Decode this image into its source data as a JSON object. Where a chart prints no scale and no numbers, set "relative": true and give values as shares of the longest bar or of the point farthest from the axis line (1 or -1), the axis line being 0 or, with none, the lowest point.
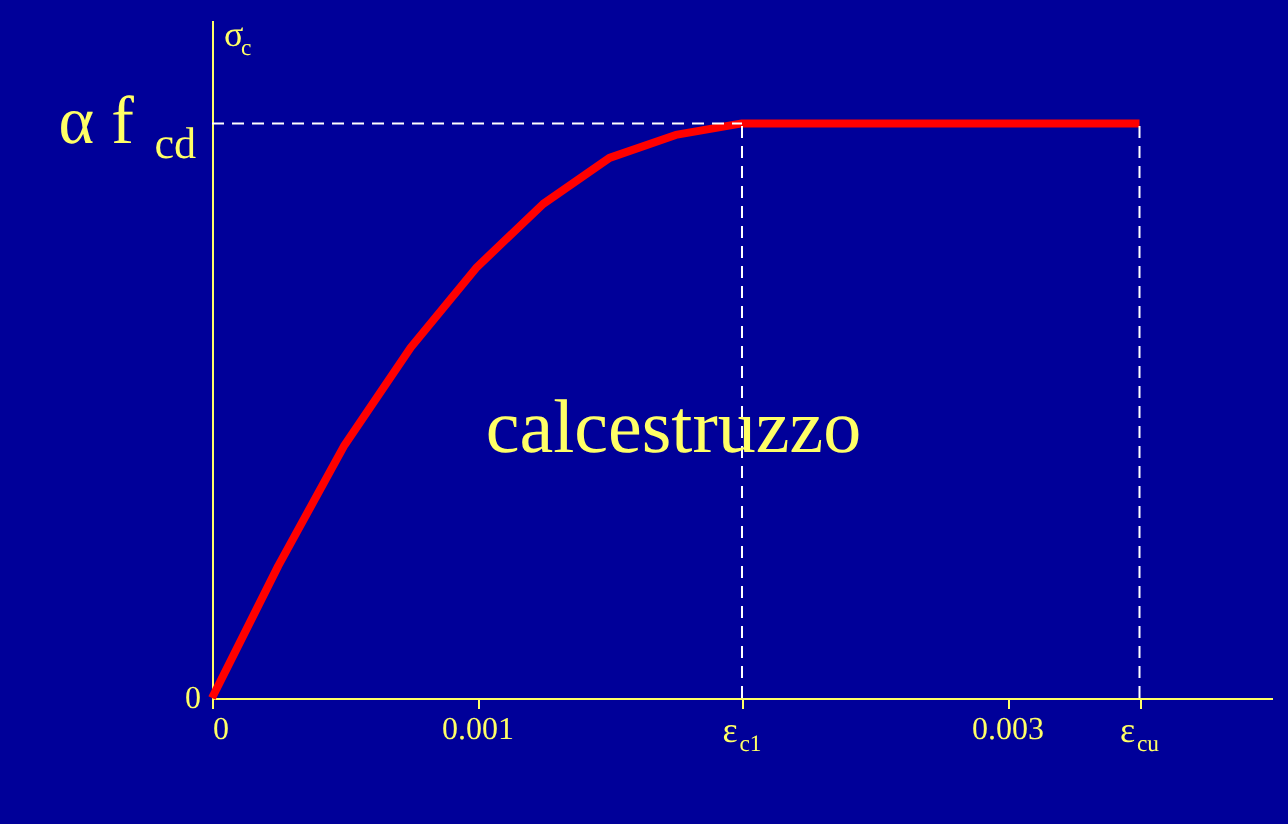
{
  "chart_data": {
    "type": "line",
    "relative": true,
    "ylabel": "σ$_{c}$",
    "x": [
      0,
      0.00025,
      0.0005,
      0.00075,
      0.001,
      0.00125,
      0.0015,
      0.00175,
      0.002,
      0.0035
    ],
    "series": [
      {
        "color": "#ff0000",
        "values": [
          0,
          0.23,
          0.44,
          0.61,
          0.75,
          0.86,
          0.94,
          0.98,
          1,
          1
        ]
      }
    ],
    "xlim": [
      0,
      0.004
    ],
    "xticks": [
      0,
      0.001,
      {
        "value": 0.002,
        "label": "ε$_{c1}$"
      },
      0.003,
      {
        "value": 0.0035,
        "label": "ε$_{cu}$"
      }
    ],
    "ref_lines": [
      {
        "axis": "x",
        "value": 0.002,
        "color": "#ffffff",
        "line_style": "dashed"
      },
      {
        "axis": "x",
        "value": 0.0035,
        "color": "#ffffff",
        "line_style": "dashed"
      },
      {
        "axis": "y",
        "value": 1,
        "color": "#ffffff",
        "line_style": "dashed"
      }
    ],
    "annotations": [
      "calcestruzzo",
      "α f$_{cd}$",
      "0"
    ],
    "grid": false,
    "marker": "none",
    "line_style": "solid"
  }
}
